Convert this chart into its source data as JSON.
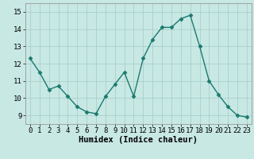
{
  "x": [
    0,
    1,
    2,
    3,
    4,
    5,
    6,
    7,
    8,
    9,
    10,
    11,
    12,
    13,
    14,
    15,
    16,
    17,
    18,
    19,
    20,
    21,
    22,
    23
  ],
  "y": [
    12.3,
    11.5,
    10.5,
    10.7,
    10.1,
    9.5,
    9.2,
    9.1,
    10.1,
    10.8,
    11.5,
    10.1,
    12.3,
    13.4,
    14.1,
    14.1,
    14.6,
    14.8,
    13.0,
    11.0,
    10.2,
    9.5,
    9.0,
    8.9
  ],
  "xlabel": "Humidex (Indice chaleur)",
  "xlim": [
    -0.5,
    23.5
  ],
  "ylim": [
    8.5,
    15.5
  ],
  "yticks": [
    9,
    10,
    11,
    12,
    13,
    14,
    15
  ],
  "xticks": [
    0,
    1,
    2,
    3,
    4,
    5,
    6,
    7,
    8,
    9,
    10,
    11,
    12,
    13,
    14,
    15,
    16,
    17,
    18,
    19,
    20,
    21,
    22,
    23
  ],
  "line_color": "#1a7a6e",
  "bg_color": "#c8e8e4",
  "grid_color": "#aacfcc",
  "marker": "D",
  "marker_size": 2.5,
  "line_width": 1.0,
  "xlabel_fontsize": 7.5,
  "tick_fontsize": 6.5
}
